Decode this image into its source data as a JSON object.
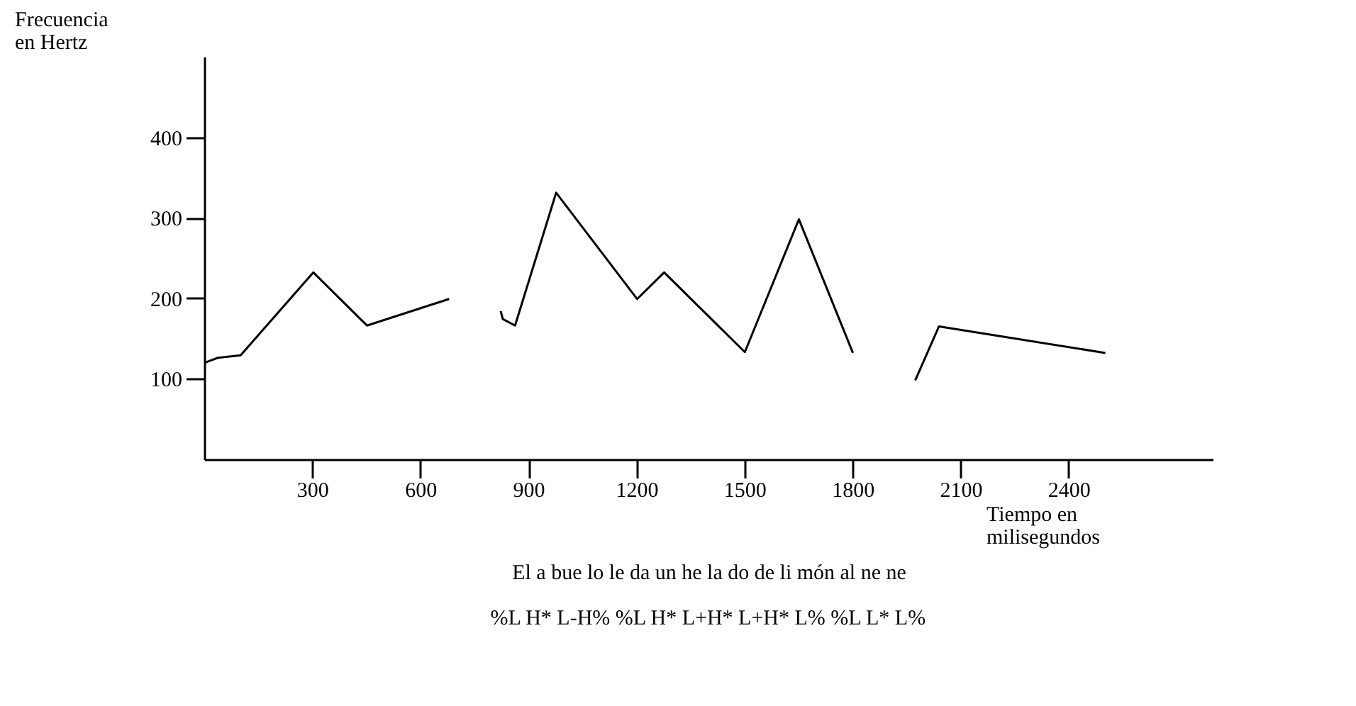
{
  "chart_data": {
    "type": "line",
    "xlabel": "Tiempo en milisegundos",
    "ylabel": "Frecuencia en Hertz",
    "xlim": [
      0,
      2800
    ],
    "ylim": [
      0,
      500
    ],
    "xticks": [
      300,
      600,
      900,
      1200,
      1500,
      1800,
      2100,
      2400
    ],
    "yticks": [
      100,
      200,
      300,
      400
    ],
    "grid": false,
    "marker": "none",
    "line_style": "solid",
    "series": [
      {
        "color": "#000000",
        "x": [
          0,
          36,
          99,
          301,
          450,
          678
        ],
        "values": [
          121,
          127,
          130,
          233,
          167,
          200
        ]
      },
      {
        "color": "#000000",
        "x": [
          821,
          827,
          861,
          975,
          1200,
          1275,
          1499,
          1649,
          1799
        ],
        "values": [
          185,
          175,
          167,
          332,
          200,
          233,
          134,
          299,
          133
        ]
      },
      {
        "color": "#000000",
        "x": [
          1972,
          2038,
          2500
        ],
        "values": [
          99,
          166,
          133
        ]
      }
    ],
    "annotations": [
      "El a bue lo le da un he la do de li món al ne ne",
      "%L H* L-H% %L H* L+H* L+H* L% %L L* L%"
    ]
  }
}
